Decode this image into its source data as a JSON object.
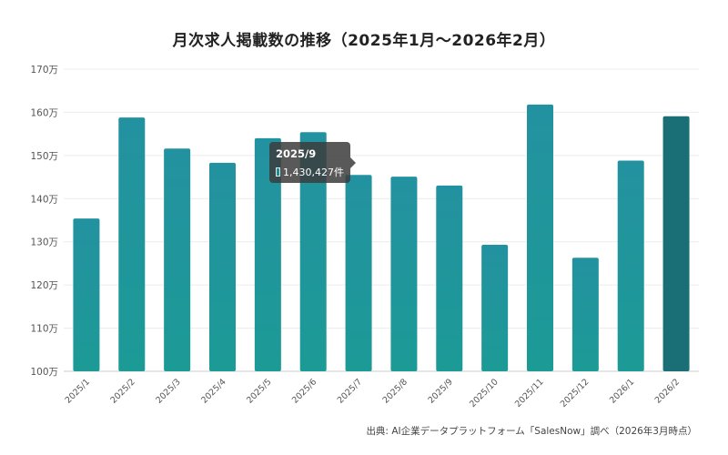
{
  "title": "月次求人掲載数の推移（2025年1月〜2026年2月）",
  "source": "出典: AI企業データプラットフォーム「SalesNow」調べ（2026年3月時点）",
  "tooltip": {
    "title": "2025/9",
    "value": "1,430,427件"
  },
  "colors": {
    "bar": "#1e9698",
    "bar_last": "#1a6e76",
    "grid": "#ececec",
    "axis_text": "#555555"
  },
  "chart_data": {
    "type": "bar",
    "title": "月次求人掲載数の推移（2025年1月〜2026年2月）",
    "categories": [
      "2025/1",
      "2025/2",
      "2025/3",
      "2025/4",
      "2025/5",
      "2025/6",
      "2025/7",
      "2025/8",
      "2025/9",
      "2025/10",
      "2025/11",
      "2025/12",
      "2026/1",
      "2026/2"
    ],
    "values": [
      1354000,
      1588000,
      1516000,
      1483000,
      1540000,
      1554000,
      1455000,
      1451000,
      1430427,
      1293000,
      1618000,
      1263000,
      1488000,
      1591000
    ],
    "ylim": [
      1000000,
      1700000
    ],
    "yticks": [
      1000000,
      1100000,
      1200000,
      1300000,
      1400000,
      1500000,
      1600000,
      1700000
    ],
    "ytick_labels": [
      "100万",
      "110万",
      "120万",
      "130万",
      "140万",
      "150万",
      "160万",
      "170万"
    ],
    "xlabel": "",
    "ylabel": "",
    "grid": true
  }
}
